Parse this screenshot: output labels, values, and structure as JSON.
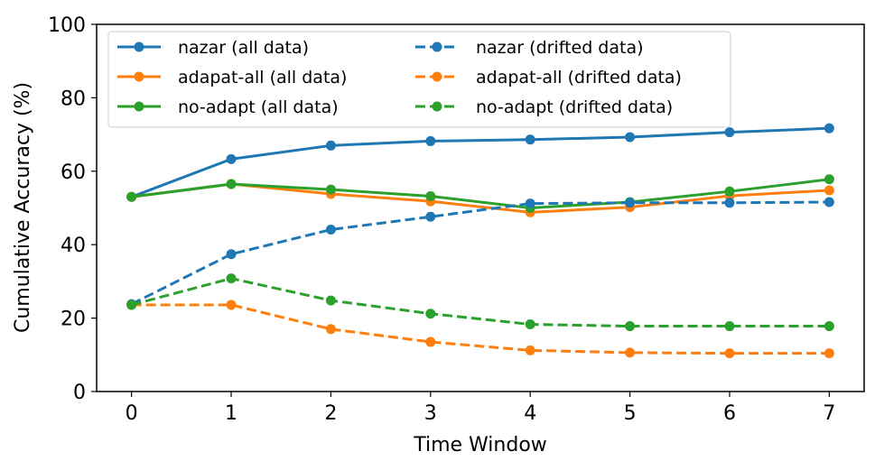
{
  "chart_data": {
    "type": "line",
    "title": "",
    "xlabel": "Time Window",
    "ylabel": "Cumulative Accuracy (%)",
    "x": [
      0,
      1,
      2,
      3,
      4,
      5,
      6,
      7
    ],
    "xlim": [
      -0.35,
      7.35
    ],
    "ylim": [
      0,
      100
    ],
    "yticks": [
      0,
      20,
      40,
      60,
      80,
      100
    ],
    "grid": false,
    "legend_position": "top-left",
    "legend_columns": 2,
    "series": [
      {
        "name": "nazar (all data)",
        "color": "#1f77b4",
        "dash": "solid",
        "values": [
          53.0,
          63.3,
          67.0,
          68.2,
          68.6,
          69.3,
          70.6,
          71.7
        ]
      },
      {
        "name": "adapat-all (all data)",
        "color": "#ff7f0e",
        "dash": "solid",
        "values": [
          53.0,
          56.5,
          53.8,
          51.8,
          48.8,
          50.2,
          53.3,
          54.8
        ]
      },
      {
        "name": "no-adapt (all data)",
        "color": "#2ca02c",
        "dash": "solid",
        "values": [
          53.0,
          56.5,
          55.0,
          53.2,
          50.0,
          51.6,
          54.5,
          57.8
        ]
      },
      {
        "name": "nazar (drifted data)",
        "color": "#1f77b4",
        "dash": "dashed",
        "values": [
          23.8,
          37.4,
          44.1,
          47.6,
          51.2,
          51.4,
          51.4,
          51.6
        ]
      },
      {
        "name": "adapat-all (drifted data)",
        "color": "#ff7f0e",
        "dash": "dashed",
        "values": [
          23.6,
          23.6,
          17.0,
          13.5,
          11.2,
          10.6,
          10.4,
          10.4
        ]
      },
      {
        "name": "no-adapt (drifted data)",
        "color": "#2ca02c",
        "dash": "dashed",
        "values": [
          23.6,
          30.8,
          24.8,
          21.2,
          18.3,
          17.8,
          17.8,
          17.8
        ]
      }
    ]
  }
}
